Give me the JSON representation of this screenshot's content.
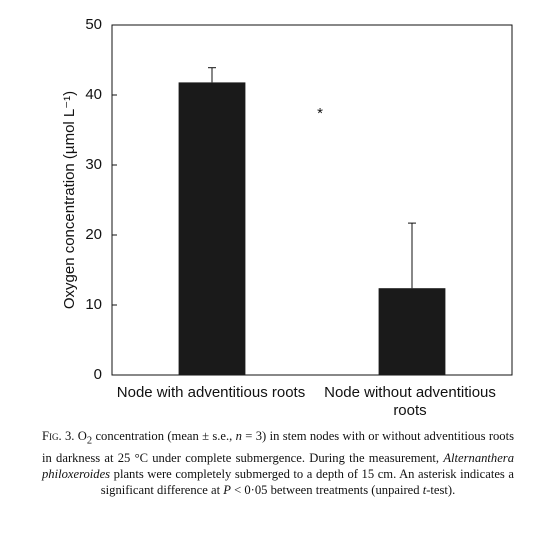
{
  "chart_data": {
    "type": "bar",
    "y_label": "Oxygen concentration (µmol L⁻¹)",
    "categories": [
      "Node with adventitious roots",
      "Node  without adventitious roots"
    ],
    "values": [
      41.8,
      12.4
    ],
    "errors": [
      2.1,
      9.3
    ],
    "color": "#1a1a1a",
    "ylim": [
      0,
      50
    ],
    "yticks": [
      0,
      10,
      20,
      30,
      40,
      50
    ],
    "grid": false,
    "annotation": "*"
  },
  "caption": [
    "Fig. 3.",
    " O",
    "2",
    " concentration (mean ± s.e., ",
    "n",
    " = 3) in stem nodes with or without adventitious roots in darkness at 25 °C under complete submergence. During the measurement, ",
    "Alternanthera philoxeroides",
    " plants were completely submerged to a depth of 15 cm. An asterisk indicates a significant difference at ",
    "P",
    " < 0·05 between treatments (unpaired ",
    "t",
    "-test)."
  ]
}
